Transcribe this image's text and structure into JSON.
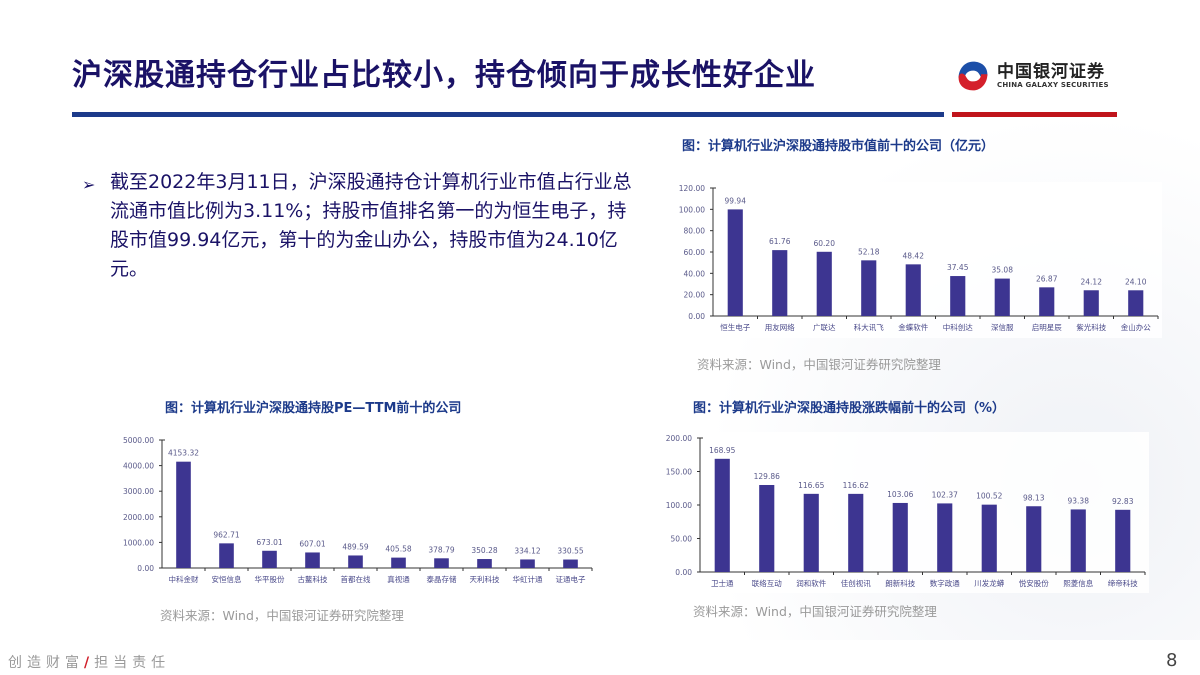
{
  "header": {
    "title": "沪深股通持仓行业占比较小，持仓倾向于成长性好企业",
    "logo_cn": "中国银河证券",
    "logo_en": "CHINA GALAXY SECURITIES",
    "colors": {
      "title": "#1a1266",
      "rule_blue": "#1c3a8a",
      "rule_red": "#c0141b",
      "bar": "#3d3591"
    }
  },
  "bullet": {
    "marker": "➢",
    "text": "截至2022年3月11日，沪深股通持仓计算机行业市值占行业总流通市值比例为3.11%；持股市值排名第一的为恒生电子，持股市值99.94亿元，第十的为金山办公，持股市值为24.10亿元。"
  },
  "charts": {
    "market_value": {
      "title": "图：计算机行业沪深股通持股市值前十的公司（亿元）",
      "source": "资料来源：Wind，中国银河证券研究院整理"
    },
    "pe_ttm": {
      "title": "图：计算机行业沪深股通持股PE—TTM前十的公司",
      "source": "资料来源：Wind，中国银河证券研究院整理"
    },
    "change": {
      "title": "图：计算机行业沪深股通持股涨跌幅前十的公司（%）",
      "source": "资料来源：Wind，中国银河证券研究院整理"
    }
  },
  "chart_data": [
    {
      "type": "bar",
      "title": "图：计算机行业沪深股通持股市值前十的公司（亿元）",
      "xlabel": "",
      "ylabel": "",
      "categories": [
        "恒生电子",
        "用友网络",
        "广联达",
        "科大讯飞",
        "金蝶软件",
        "中科创达",
        "深信服",
        "启明星辰",
        "紫光科技",
        "金山办公"
      ],
      "values": [
        99.94,
        61.76,
        60.2,
        52.18,
        48.42,
        37.45,
        35.08,
        26.87,
        24.12,
        24.1
      ],
      "labels": [
        "99.94",
        "61.76",
        "60.20",
        "52.18",
        "48.42",
        "37.45",
        "35.08",
        "26.87",
        "24.12",
        "24.10"
      ],
      "yticks": [
        "0.00",
        "20.00",
        "40.00",
        "60.00",
        "80.00",
        "100.00",
        "120.00"
      ],
      "ylim": [
        0,
        120
      ],
      "grid": false,
      "color": "#3d3591"
    },
    {
      "type": "bar",
      "title": "图：计算机行业沪深股通持股PE—TTM前十的公司",
      "xlabel": "",
      "ylabel": "",
      "categories": [
        "中科金财",
        "安恒信息",
        "华平股份",
        "古鳌科技",
        "首都在线",
        "真视通",
        "泰晶存储",
        "天利科技",
        "华虹计通",
        "证通电子"
      ],
      "values": [
        4153.32,
        962.71,
        673.01,
        607.01,
        489.59,
        405.58,
        378.79,
        350.28,
        334.12,
        330.55
      ],
      "labels": [
        "4153.32",
        "962.71",
        "673.01",
        "607.01",
        "489.59",
        "405.58",
        "378.79",
        "350.28",
        "334.12",
        "330.55"
      ],
      "yticks": [
        "0.00",
        "1000.00",
        "2000.00",
        "3000.00",
        "4000.00",
        "5000.00"
      ],
      "ylim": [
        0,
        5000
      ],
      "grid": false,
      "color": "#3d3591"
    },
    {
      "type": "bar",
      "title": "图：计算机行业沪深股通持股涨跌幅前十的公司（%）",
      "xlabel": "",
      "ylabel": "",
      "categories": [
        "卫士通",
        "联络互动",
        "润和软件",
        "佳创视讯",
        "朗新科技",
        "数字政通",
        "川发龙蟒",
        "悦安股份",
        "熙菱信息",
        "缔帝科技"
      ],
      "values": [
        168.95,
        129.86,
        116.65,
        116.62,
        103.06,
        102.37,
        100.52,
        98.13,
        93.38,
        92.83
      ],
      "labels": [
        "168.95",
        "129.86",
        "116.65",
        "116.62",
        "103.06",
        "102.37",
        "100.52",
        "98.13",
        "93.38",
        "92.83"
      ],
      "yticks": [
        "0.00",
        "50.00",
        "100.00",
        "150.00",
        "200.00"
      ],
      "ylim": [
        0,
        200
      ],
      "grid": false,
      "color": "#3d3591"
    }
  ],
  "footer": {
    "slogan_left": "创造财富",
    "slash": "/",
    "slogan_right": "担当责任",
    "page_number": "8"
  }
}
